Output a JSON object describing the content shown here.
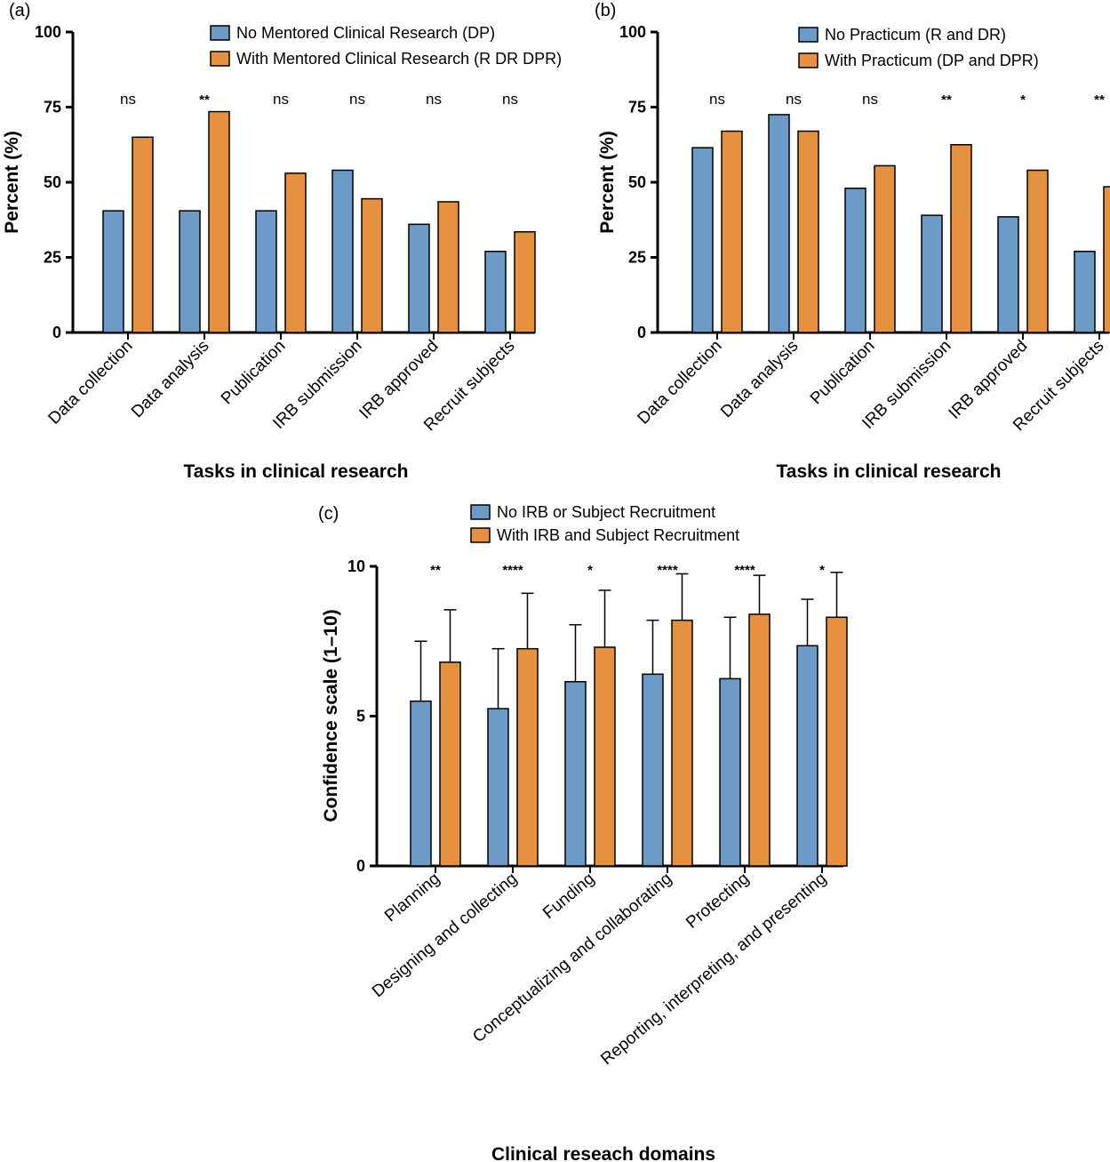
{
  "colors": {
    "blue": "#6b9bc6",
    "orange": "#e5913f",
    "axis": "#000000"
  },
  "chart_data": [
    {
      "panel": "(a)",
      "type": "bar",
      "categories": [
        "Data collection",
        "Data analysis",
        "Publication",
        "IRB submission",
        "IRB approved",
        "Recruit subjects"
      ],
      "series": [
        {
          "name": "No Mentored Clinical Research (DP)",
          "color": "blue",
          "values": [
            40.5,
            40.5,
            40.5,
            54,
            36,
            27
          ]
        },
        {
          "name": "With Mentored Clinical Research (R DR DPR)",
          "color": "orange",
          "values": [
            65,
            73.5,
            53,
            44.5,
            43.5,
            33.5
          ]
        }
      ],
      "significance": [
        "ns",
        "**",
        "ns",
        "ns",
        "ns",
        "ns"
      ],
      "ylabel": "Percent (%)",
      "xlabel": "Tasks in clinical  research",
      "ylim": [
        0,
        100
      ],
      "yticks": [
        0,
        25,
        50,
        75,
        100
      ],
      "error_bars": false,
      "legend": "top-right"
    },
    {
      "panel": "(b)",
      "type": "bar",
      "categories": [
        "Data collection",
        "Data analysis",
        "Publication",
        "IRB submission",
        "IRB approved",
        "Recruit subjects"
      ],
      "series": [
        {
          "name": "No Practicum (R and DR)",
          "color": "blue",
          "values": [
            61.5,
            72.5,
            48,
            39,
            38.5,
            27
          ]
        },
        {
          "name": "With Practicum (DP and DPR)",
          "color": "orange",
          "values": [
            67,
            67,
            55.5,
            62.5,
            54,
            48.5
          ]
        }
      ],
      "significance": [
        "ns",
        "ns",
        "ns",
        "**",
        "*",
        "**"
      ],
      "ylabel": "Percent (%)",
      "xlabel": "Tasks in clinical  research",
      "ylim": [
        0,
        100
      ],
      "yticks": [
        0,
        25,
        50,
        75,
        100
      ],
      "error_bars": false,
      "legend": "top-right"
    },
    {
      "panel": "(c)",
      "type": "bar",
      "categories": [
        "Planning",
        "Designing and collecting",
        "Funding",
        "Conceptualizing and collaborating",
        "Protecting",
        "Reporting, interpreting, and presenting"
      ],
      "series": [
        {
          "name": "No IRB or Subject Recruitment",
          "color": "blue",
          "values": [
            5.5,
            5.25,
            6.15,
            6.4,
            6.25,
            7.35
          ],
          "errors": [
            2.0,
            2.0,
            1.9,
            1.8,
            2.05,
            1.55
          ]
        },
        {
          "name": "With IRB and Subject Recruitment",
          "color": "orange",
          "values": [
            6.8,
            7.25,
            7.3,
            8.2,
            8.4,
            8.3
          ],
          "errors": [
            1.75,
            1.85,
            1.9,
            1.55,
            1.3,
            1.5
          ]
        }
      ],
      "significance": [
        "**",
        "****",
        "*",
        "****",
        "****",
        "*"
      ],
      "ylabel": "Confidence scale (1–10)",
      "xlabel": "Clinical reseach domains",
      "ylim": [
        0,
        10
      ],
      "yticks": [
        0,
        5,
        10
      ],
      "error_bars": true,
      "legend": "top"
    }
  ]
}
